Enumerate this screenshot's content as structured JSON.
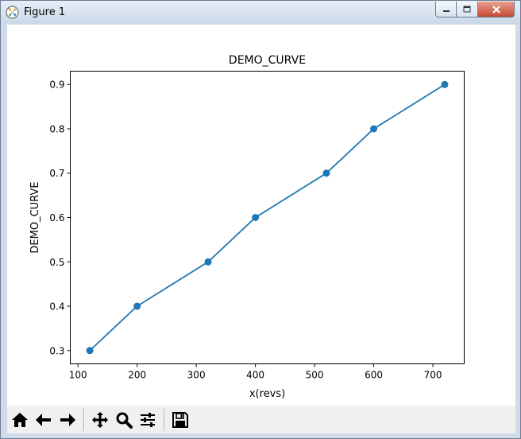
{
  "window": {
    "title": "Figure 1"
  },
  "toolbar": {
    "buttons": [
      {
        "name": "home-icon"
      },
      {
        "name": "back-arrow-icon"
      },
      {
        "name": "forward-arrow-icon"
      },
      {
        "name": "pan-icon"
      },
      {
        "name": "zoom-icon"
      },
      {
        "name": "configure-subplots-icon"
      },
      {
        "name": "save-icon"
      }
    ]
  },
  "chart_data": {
    "type": "line",
    "title": "DEMO_CURVE",
    "xlabel": "x(revs)",
    "ylabel": "DEMO_CURVE",
    "x": [
      120,
      200,
      320,
      400,
      520,
      600,
      720
    ],
    "series": [
      {
        "values": [
          0.3,
          0.4,
          0.5,
          0.6,
          0.7,
          0.8,
          0.9
        ],
        "color": "#1f77b4"
      }
    ],
    "xlim": [
      87,
      753
    ],
    "ylim": [
      0.27,
      0.93
    ],
    "xticks": [
      100,
      200,
      300,
      400,
      500,
      600,
      700
    ],
    "xtick_labels": [
      "100",
      "200",
      "300",
      "400",
      "500",
      "600",
      "700"
    ],
    "yticks": [
      0.3,
      0.4,
      0.5,
      0.6,
      0.7,
      0.8,
      0.9
    ],
    "ytick_labels": [
      "0.3",
      "0.4",
      "0.5",
      "0.6",
      "0.7",
      "0.8",
      "0.9"
    ],
    "grid": false,
    "markers": "circle"
  }
}
